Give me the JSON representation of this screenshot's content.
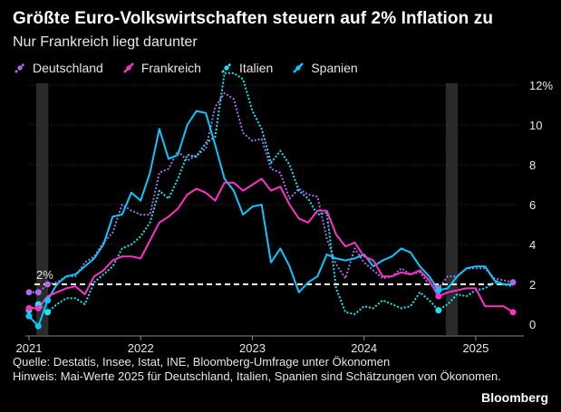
{
  "header": {
    "title": "Größte Euro-Volkswirtschaften steuern auf 2% Inflation zu",
    "subtitle": "Nur Frankreich liegt darunter"
  },
  "legend": [
    {
      "label": "Deutschland",
      "color": "#a66de6",
      "style": "dashed"
    },
    {
      "label": "Frankreich",
      "color": "#ff32c8",
      "style": "solid"
    },
    {
      "label": "Italien",
      "color": "#1ee6f0",
      "style": "dashed"
    },
    {
      "label": "Spanien",
      "color": "#0ac8ff",
      "style": "solid"
    }
  ],
  "footer": {
    "source": "Quelle: Destatis, Insee, Istat, INE, Bloomberg-Umfrage unter Ökonomen",
    "note": "Hinweis: Mai-Werte 2025 für Deutschland, Italien, Spanien sind Schätzungen von Ökonomen.",
    "brand": "Bloomberg"
  },
  "chart_data": {
    "type": "line",
    "title": "Größte Euro-Volkswirtschaften steuern auf 2% Inflation zu",
    "subtitle": "Nur Frankreich liegt darunter",
    "x_start": "2021-01",
    "x_end": "2025-05",
    "x_tick_labels": [
      "2021",
      "2022",
      "2023",
      "2024",
      "2025"
    ],
    "y_tick_labels": [
      "0",
      "2",
      "4",
      "6",
      "8",
      "10",
      "12%"
    ],
    "ylim": [
      0,
      12
    ],
    "legend_position": "top-left",
    "reference_line": {
      "value": 2,
      "label": "2%",
      "style": "dashed",
      "color": "#ffffff"
    },
    "shaded_periods": [
      {
        "start": "2021-01",
        "end": "2021-02"
      },
      {
        "start": "2024-09",
        "end": "2024-10"
      }
    ],
    "series": [
      {
        "name": "Deutschland",
        "color": "#a66de6",
        "style": "dashed",
        "markers": [
          0,
          1,
          2,
          44,
          52
        ],
        "values": [
          1.6,
          1.6,
          2.0,
          2.1,
          2.4,
          2.4,
          3.1,
          3.4,
          4.1,
          4.6,
          6.0,
          5.7,
          5.5,
          5.5,
          7.6,
          7.8,
          8.7,
          8.2,
          8.5,
          8.8,
          10.9,
          11.6,
          11.3,
          9.6,
          9.2,
          9.3,
          7.8,
          7.6,
          6.3,
          6.8,
          6.5,
          6.4,
          4.3,
          3.0,
          2.3,
          3.8,
          3.1,
          2.7,
          2.3,
          2.4,
          2.8,
          2.5,
          2.6,
          2.0,
          1.8,
          2.4,
          2.4,
          2.8,
          2.8,
          2.8,
          2.3,
          2.2,
          2.1
        ]
      },
      {
        "name": "Frankreich",
        "color": "#ff32c8",
        "style": "solid",
        "markers": [
          0,
          1,
          44,
          52
        ],
        "values": [
          0.8,
          0.8,
          1.4,
          1.6,
          1.8,
          1.9,
          1.5,
          2.4,
          2.7,
          3.2,
          3.4,
          3.4,
          3.3,
          4.2,
          5.1,
          5.4,
          5.8,
          6.5,
          6.8,
          6.6,
          6.2,
          7.1,
          7.1,
          6.7,
          7.0,
          7.3,
          6.7,
          6.9,
          6.0,
          5.3,
          5.1,
          5.7,
          5.7,
          4.5,
          3.9,
          4.1,
          3.4,
          3.2,
          2.4,
          2.4,
          2.6,
          2.5,
          2.7,
          2.2,
          1.4,
          1.6,
          1.7,
          1.8,
          1.8,
          0.9,
          0.9,
          0.9,
          0.6
        ]
      },
      {
        "name": "Italien",
        "color": "#1ee6f0",
        "style": "dashed",
        "markers": [
          0,
          1,
          2,
          44
        ],
        "values": [
          0.7,
          1.0,
          0.6,
          1.0,
          1.3,
          1.3,
          1.0,
          2.1,
          2.5,
          2.9,
          3.8,
          4.0,
          4.4,
          5.1,
          6.7,
          6.3,
          7.3,
          8.5,
          8.4,
          9.1,
          9.4,
          12.6,
          12.6,
          12.3,
          10.7,
          9.8,
          8.1,
          8.7,
          8.0,
          6.7,
          6.3,
          5.5,
          5.6,
          1.8,
          0.6,
          0.5,
          0.9,
          0.8,
          1.2,
          1.0,
          0.8,
          0.9,
          1.6,
          1.2,
          0.7,
          1.0,
          1.5,
          1.4,
          1.7,
          1.8,
          2.1,
          2.0,
          1.9
        ]
      },
      {
        "name": "Spanien",
        "color": "#0ac8ff",
        "style": "solid",
        "markers": [
          0,
          1,
          2,
          44
        ],
        "values": [
          0.4,
          -0.1,
          1.2,
          2.0,
          2.4,
          2.5,
          2.9,
          3.3,
          4.0,
          5.4,
          5.5,
          6.6,
          6.2,
          7.6,
          9.8,
          8.3,
          8.5,
          10.0,
          10.7,
          10.6,
          9.0,
          7.3,
          6.7,
          5.5,
          5.9,
          6.0,
          3.1,
          3.8,
          2.9,
          1.6,
          2.1,
          2.4,
          3.5,
          3.3,
          3.2,
          3.3,
          3.5,
          2.9,
          3.2,
          3.4,
          3.8,
          3.6,
          2.9,
          2.4,
          1.7,
          1.8,
          2.4,
          2.8,
          2.9,
          2.9,
          2.2,
          2.0,
          2.0
        ]
      }
    ]
  }
}
